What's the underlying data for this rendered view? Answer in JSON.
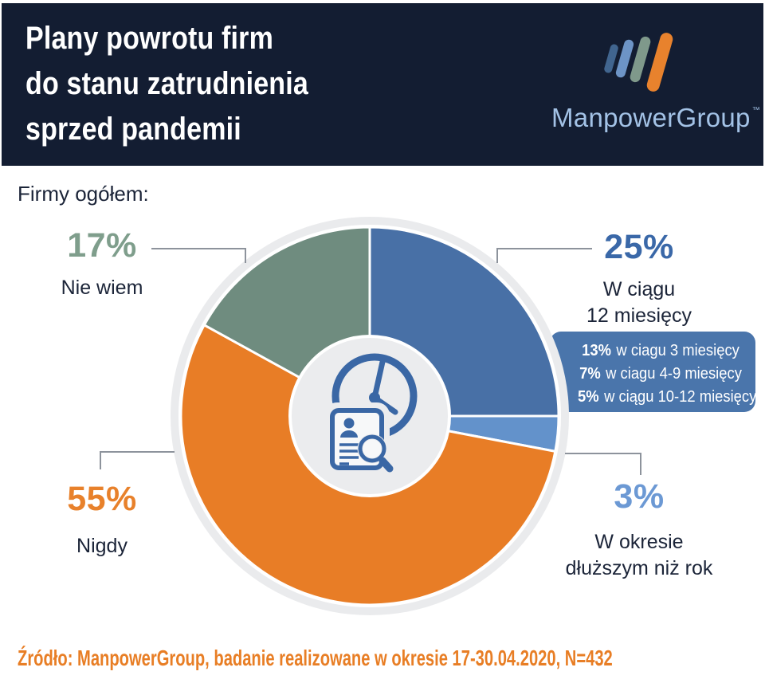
{
  "header": {
    "title_lines": [
      "Plany powrotu firm",
      "do stanu zatrudnienia",
      "sprzed pandemii"
    ],
    "logo": {
      "text": "ManpowerGroup",
      "tm": "™",
      "bar_colors": [
        "#41658f",
        "#6d94c6",
        "#7f998b",
        "#e8822d"
      ]
    }
  },
  "subtitle": "Firmy ogółem:",
  "chart_data": {
    "type": "pie",
    "donut": true,
    "start_angle": "top",
    "direction": "clockwise",
    "group_label": "Firmy ogółem:",
    "slices": [
      {
        "pct": "25%",
        "value": 25,
        "label": "W ciągu 12 miesięcy",
        "label_lines": [
          "W ciągu",
          "12 miesięcy"
        ],
        "color": "#4870a6",
        "label_color": "#3a68a8"
      },
      {
        "pct": "3%",
        "value": 3,
        "label": "W okresie dłuższym niż rok",
        "label_lines": [
          "W okresie",
          "dłuższym niż rok"
        ],
        "color": "#6392cb",
        "label_color": "#6c99d4"
      },
      {
        "pct": "55%",
        "value": 55,
        "label": "Nigdy",
        "label_lines": [
          "Nigdy"
        ],
        "color": "#e87d26",
        "label_color": "#e8812b"
      },
      {
        "pct": "17%",
        "value": 17,
        "label": "Nie wiem",
        "label_lines": [
          "Nie wiem"
        ],
        "color": "#6f8c7f",
        "label_color": "#7f9e8c"
      }
    ],
    "breakdown_box": {
      "bg_color": "#4a75ab",
      "text_color": "#ffffff",
      "items": [
        {
          "pct": "13%",
          "text": "w ciagu 3 miesięcy"
        },
        {
          "pct": "7%",
          "text": "w ciagu 4-9 miesięcy"
        },
        {
          "pct": "5%",
          "text": "w ciągu 10-12 miesięcy"
        }
      ]
    }
  },
  "footer": {
    "source": "Źródło: ManpowerGroup, badanie realizowane w okresie 17-30.04.2020, N=432"
  },
  "colors": {
    "header_bg": "#131d32",
    "text_dark": "#1b2438",
    "accent_orange": "#e87e25",
    "leader_line": "#8d939c",
    "pie_backing": "#eaebed",
    "donut_hole": "#ebecee",
    "icon_blue": "#3a67a5",
    "logo_text": "#a3c2e6"
  }
}
